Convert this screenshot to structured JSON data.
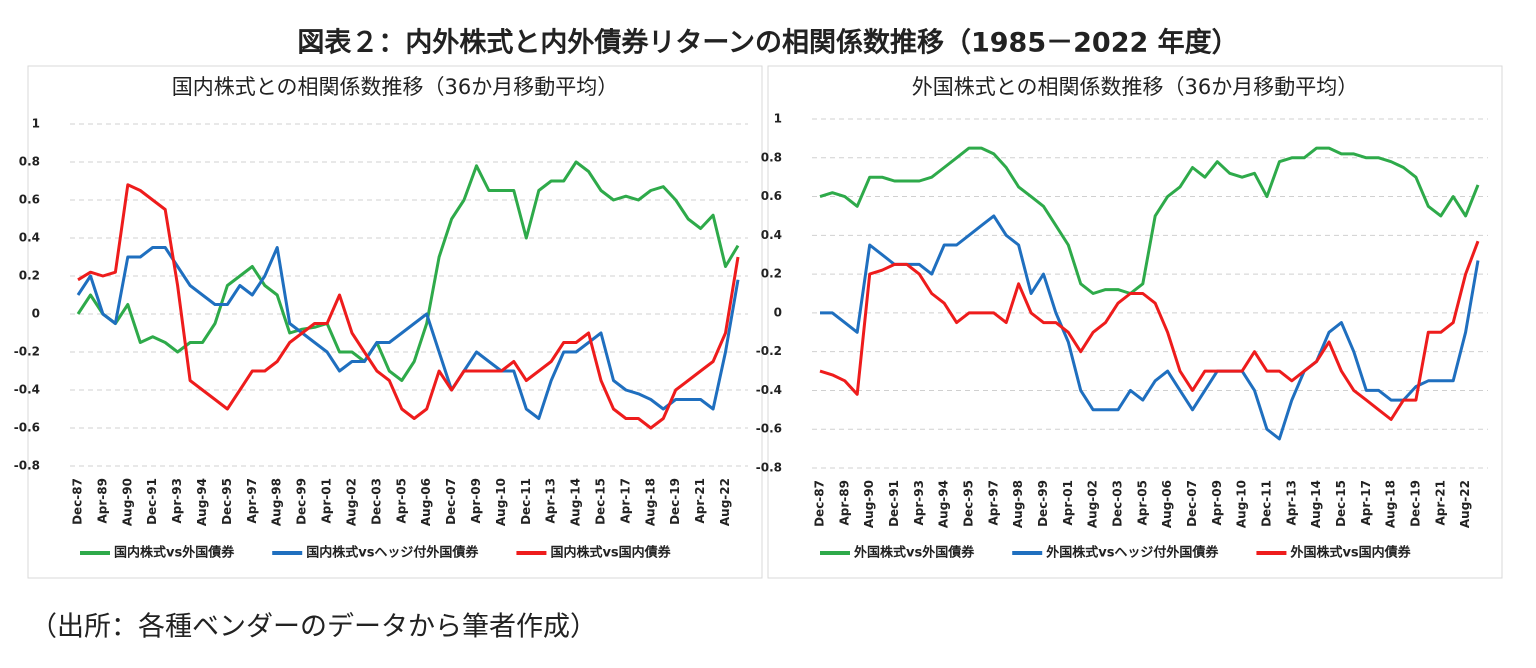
{
  "title": "図表２：内外株式と内外債券リターンの相関係数推移（1985－2022 年度）",
  "source": "（出所：各種ベンダーのデータから筆者作成）",
  "chart_data": [
    {
      "type": "line",
      "title": "国内株式との相関係数推移（36か月移動平均）",
      "categories": [
        "Dec-87",
        null,
        "Apr-89",
        null,
        "Aug-90",
        null,
        "Dec-91",
        null,
        "Apr-93",
        null,
        "Aug-94",
        null,
        "Dec-95",
        null,
        "Apr-97",
        null,
        "Aug-98",
        null,
        "Dec-99",
        null,
        "Apr-01",
        null,
        "Aug-02",
        null,
        "Dec-03",
        null,
        "Apr-05",
        null,
        "Aug-06",
        null,
        "Dec-07",
        null,
        "Apr-09",
        null,
        "Aug-10",
        null,
        "Dec-11",
        null,
        "Apr-13",
        null,
        "Aug-14",
        null,
        "Dec-15",
        null,
        "Apr-17",
        null,
        "Aug-18",
        null,
        "Dec-19",
        null,
        "Apr-21",
        null,
        "Aug-22",
        null
      ],
      "ylim": [
        -0.8,
        1
      ],
      "yticks": [
        -0.8,
        -0.6,
        -0.4,
        -0.2,
        0,
        0.2,
        0.4,
        0.6,
        0.8,
        1
      ],
      "grid": true,
      "legend": "bottom",
      "series": [
        {
          "name": "国内株式vs外国債券",
          "color": "#2eaa4a",
          "values": [
            0.0,
            0.1,
            0.0,
            -0.05,
            0.05,
            -0.15,
            -0.12,
            -0.15,
            -0.2,
            -0.15,
            -0.15,
            -0.05,
            0.15,
            0.2,
            0.25,
            0.15,
            0.1,
            -0.1,
            -0.08,
            -0.07,
            -0.05,
            -0.2,
            -0.2,
            -0.25,
            -0.15,
            -0.3,
            -0.35,
            -0.25,
            -0.05,
            0.3,
            0.5,
            0.6,
            0.78,
            0.65,
            0.65,
            0.65,
            0.4,
            0.65,
            0.7,
            0.7,
            0.8,
            0.75,
            0.65,
            0.6,
            0.62,
            0.6,
            0.65,
            0.67,
            0.6,
            0.5,
            0.45,
            0.52,
            0.25,
            0.36
          ]
        },
        {
          "name": "国内株式vsヘッジ付外国債券",
          "color": "#1f6fbf",
          "values": [
            0.1,
            0.2,
            0.0,
            -0.05,
            0.3,
            0.3,
            0.35,
            0.35,
            0.25,
            0.15,
            0.1,
            0.05,
            0.05,
            0.15,
            0.1,
            0.2,
            0.35,
            -0.05,
            -0.1,
            -0.15,
            -0.2,
            -0.3,
            -0.25,
            -0.25,
            -0.15,
            -0.15,
            -0.1,
            -0.05,
            0.0,
            -0.2,
            -0.4,
            -0.3,
            -0.2,
            -0.25,
            -0.3,
            -0.3,
            -0.5,
            -0.55,
            -0.35,
            -0.2,
            -0.2,
            -0.15,
            -0.1,
            -0.35,
            -0.4,
            -0.42,
            -0.45,
            -0.5,
            -0.45,
            -0.45,
            -0.45,
            -0.5,
            -0.2,
            0.18
          ]
        },
        {
          "name": "国内株式vs国内債券",
          "color": "#ee1c1c",
          "values": [
            0.18,
            0.22,
            0.2,
            0.22,
            0.68,
            0.65,
            0.6,
            0.55,
            0.15,
            -0.35,
            -0.4,
            -0.45,
            -0.5,
            -0.4,
            -0.3,
            -0.3,
            -0.25,
            -0.15,
            -0.1,
            -0.05,
            -0.05,
            0.1,
            -0.1,
            -0.2,
            -0.3,
            -0.35,
            -0.5,
            -0.55,
            -0.5,
            -0.3,
            -0.4,
            -0.3,
            -0.3,
            -0.3,
            -0.3,
            -0.25,
            -0.35,
            -0.3,
            -0.25,
            -0.15,
            -0.15,
            -0.1,
            -0.35,
            -0.5,
            -0.55,
            -0.55,
            -0.6,
            -0.55,
            -0.4,
            -0.35,
            -0.3,
            -0.25,
            -0.1,
            0.3
          ]
        }
      ]
    },
    {
      "type": "line",
      "title": "外国株式との相関係数推移（36か月移動平均）",
      "categories": [
        "Dec-87",
        null,
        "Apr-89",
        null,
        "Aug-90",
        null,
        "Dec-91",
        null,
        "Apr-93",
        null,
        "Aug-94",
        null,
        "Dec-95",
        null,
        "Apr-97",
        null,
        "Aug-98",
        null,
        "Dec-99",
        null,
        "Apr-01",
        null,
        "Aug-02",
        null,
        "Dec-03",
        null,
        "Apr-05",
        null,
        "Aug-06",
        null,
        "Dec-07",
        null,
        "Apr-09",
        null,
        "Aug-10",
        null,
        "Dec-11",
        null,
        "Apr-13",
        null,
        "Aug-14",
        null,
        "Dec-15",
        null,
        "Apr-17",
        null,
        "Aug-18",
        null,
        "Dec-19",
        null,
        "Apr-21",
        null,
        "Aug-22",
        null
      ],
      "ylim": [
        -0.8,
        1
      ],
      "yticks": [
        -0.8,
        -0.6,
        -0.4,
        -0.2,
        0,
        0.2,
        0.4,
        0.6,
        0.8,
        1
      ],
      "grid": true,
      "legend": "bottom",
      "series": [
        {
          "name": "外国株式vs外国債券",
          "color": "#2eaa4a",
          "values": [
            0.6,
            0.62,
            0.6,
            0.55,
            0.7,
            0.7,
            0.68,
            0.68,
            0.68,
            0.7,
            0.75,
            0.8,
            0.85,
            0.85,
            0.82,
            0.75,
            0.65,
            0.6,
            0.55,
            0.45,
            0.35,
            0.15,
            0.1,
            0.12,
            0.12,
            0.1,
            0.15,
            0.5,
            0.6,
            0.65,
            0.75,
            0.7,
            0.78,
            0.72,
            0.7,
            0.72,
            0.6,
            0.78,
            0.8,
            0.8,
            0.85,
            0.85,
            0.82,
            0.82,
            0.8,
            0.8,
            0.78,
            0.75,
            0.7,
            0.55,
            0.5,
            0.6,
            0.5,
            0.66
          ]
        },
        {
          "name": "外国株式vsヘッジ付外国債券",
          "color": "#1f6fbf",
          "values": [
            0.0,
            0.0,
            -0.05,
            -0.1,
            0.35,
            0.3,
            0.25,
            0.25,
            0.25,
            0.2,
            0.35,
            0.35,
            0.4,
            0.45,
            0.5,
            0.4,
            0.35,
            0.1,
            0.2,
            0.0,
            -0.15,
            -0.4,
            -0.5,
            -0.5,
            -0.5,
            -0.4,
            -0.45,
            -0.35,
            -0.3,
            -0.4,
            -0.5,
            -0.4,
            -0.3,
            -0.3,
            -0.3,
            -0.4,
            -0.6,
            -0.65,
            -0.45,
            -0.3,
            -0.25,
            -0.1,
            -0.05,
            -0.2,
            -0.4,
            -0.4,
            -0.45,
            -0.45,
            -0.38,
            -0.35,
            -0.35,
            -0.35,
            -0.1,
            0.27
          ]
        },
        {
          "name": "外国株式vs国内債券",
          "color": "#ee1c1c",
          "values": [
            -0.3,
            -0.32,
            -0.35,
            -0.42,
            0.2,
            0.22,
            0.25,
            0.25,
            0.2,
            0.1,
            0.05,
            -0.05,
            0.0,
            0.0,
            0.0,
            -0.05,
            0.15,
            0.0,
            -0.05,
            -0.05,
            -0.1,
            -0.2,
            -0.1,
            -0.05,
            0.05,
            0.1,
            0.1,
            0.05,
            -0.1,
            -0.3,
            -0.4,
            -0.3,
            -0.3,
            -0.3,
            -0.3,
            -0.2,
            -0.3,
            -0.3,
            -0.35,
            -0.3,
            -0.25,
            -0.15,
            -0.3,
            -0.4,
            -0.45,
            -0.5,
            -0.55,
            -0.45,
            -0.45,
            -0.1,
            -0.1,
            -0.05,
            0.2,
            0.37
          ]
        }
      ]
    }
  ]
}
